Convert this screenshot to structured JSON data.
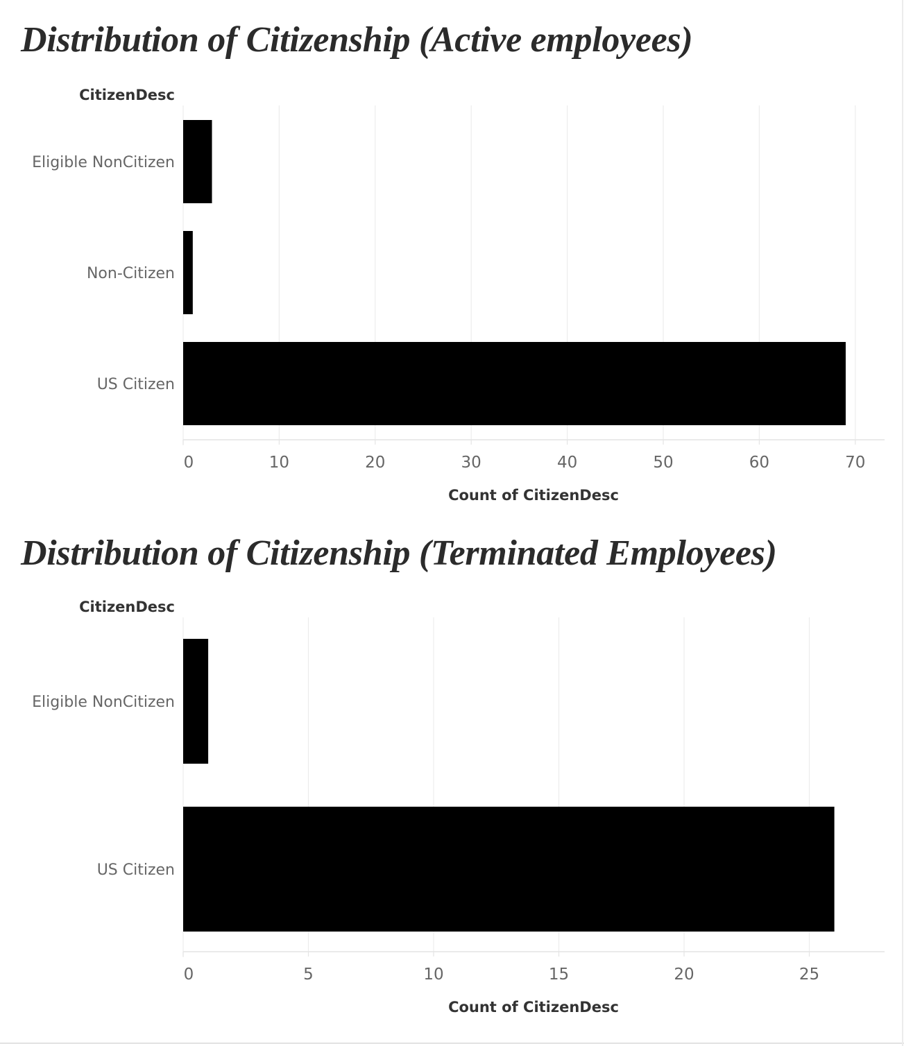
{
  "chart_data": [
    {
      "type": "bar",
      "orientation": "horizontal",
      "title": "Distribution of Citizenship (Active employees)",
      "ylabel": "CitizenDesc",
      "xlabel": "Count of CitizenDesc",
      "categories": [
        "Eligible NonCitizen",
        "Non-Citizen",
        "US Citizen"
      ],
      "values": [
        3,
        1,
        69
      ],
      "xlim": [
        0,
        73
      ],
      "xticks": [
        0,
        10,
        20,
        30,
        40,
        50,
        60,
        70
      ],
      "bar_color": "#000000",
      "grid": true
    },
    {
      "type": "bar",
      "orientation": "horizontal",
      "title": "Distribution of Citizenship (Terminated Employees)",
      "ylabel": "CitizenDesc",
      "xlabel": "Count of CitizenDesc",
      "categories": [
        "Eligible NonCitizen",
        "US Citizen"
      ],
      "values": [
        1,
        26
      ],
      "xlim": [
        0,
        28
      ],
      "xticks": [
        0,
        5,
        10,
        15,
        20,
        25
      ],
      "bar_color": "#000000",
      "grid": true
    }
  ]
}
